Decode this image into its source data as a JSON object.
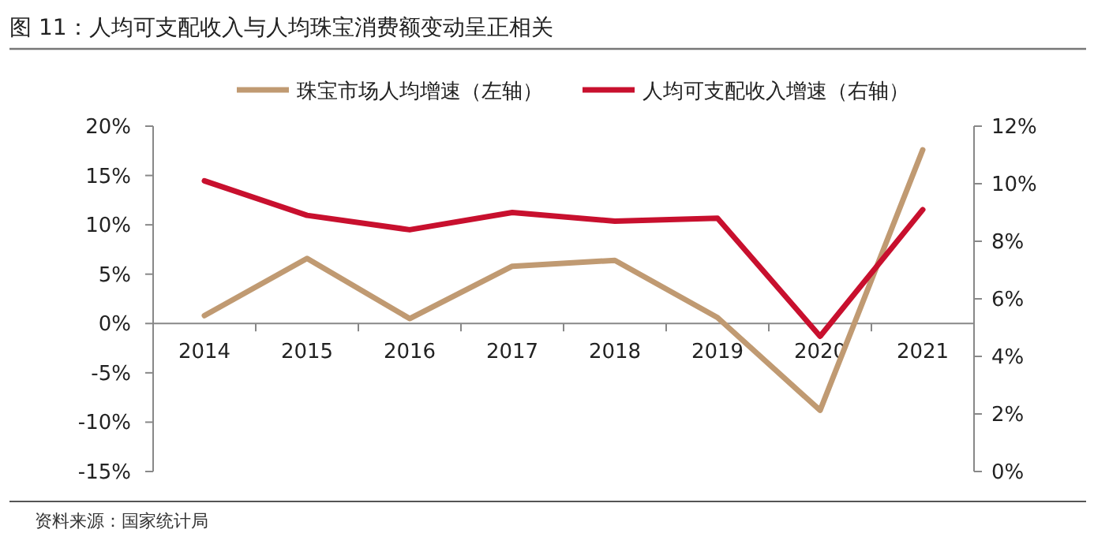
{
  "chart_data": {
    "type": "line",
    "title": "图 11：人均可支配收入与人均珠宝消费额变动呈正相关",
    "annotations": [
      "资料来源：国家统计局"
    ],
    "categories": [
      "2014",
      "2015",
      "2016",
      "2017",
      "2018",
      "2019",
      "2020",
      "2021"
    ],
    "series": [
      {
        "name": "珠宝市场人均增速（左轴）",
        "color": "#c09a72",
        "values": [
          0.8,
          6.6,
          0.5,
          5.8,
          6.4,
          0.6,
          -8.8,
          17.6
        ]
      },
      {
        "name": "人均可支配收入增速（右轴）",
        "color": "#c8102e",
        "axis": "y2",
        "values": [
          10.1,
          8.9,
          8.4,
          9.0,
          8.7,
          8.8,
          4.7,
          9.1
        ]
      }
    ],
    "ylim": [
      -15,
      20
    ],
    "yticks": [
      {
        "value": -15,
        "label": "-15%"
      },
      {
        "value": -10,
        "label": "-10%"
      },
      {
        "value": -5,
        "label": "-5%"
      },
      {
        "value": 0,
        "label": "0%"
      },
      {
        "value": 5,
        "label": "5%"
      },
      {
        "value": 10,
        "label": "10%"
      },
      {
        "value": 15,
        "label": "15%"
      },
      {
        "value": 20,
        "label": "20%"
      }
    ],
    "y2lim": [
      0,
      12
    ],
    "y2ticks": [
      {
        "value": 0,
        "label": "0%"
      },
      {
        "value": 2,
        "label": "2%"
      },
      {
        "value": 4,
        "label": "4%"
      },
      {
        "value": 6,
        "label": "6%"
      },
      {
        "value": 8,
        "label": "8%"
      },
      {
        "value": 10,
        "label": "10%"
      },
      {
        "value": 12,
        "label": "12%"
      }
    ],
    "legend": "top",
    "grid": false,
    "marker": "none",
    "line_style": "solid"
  }
}
